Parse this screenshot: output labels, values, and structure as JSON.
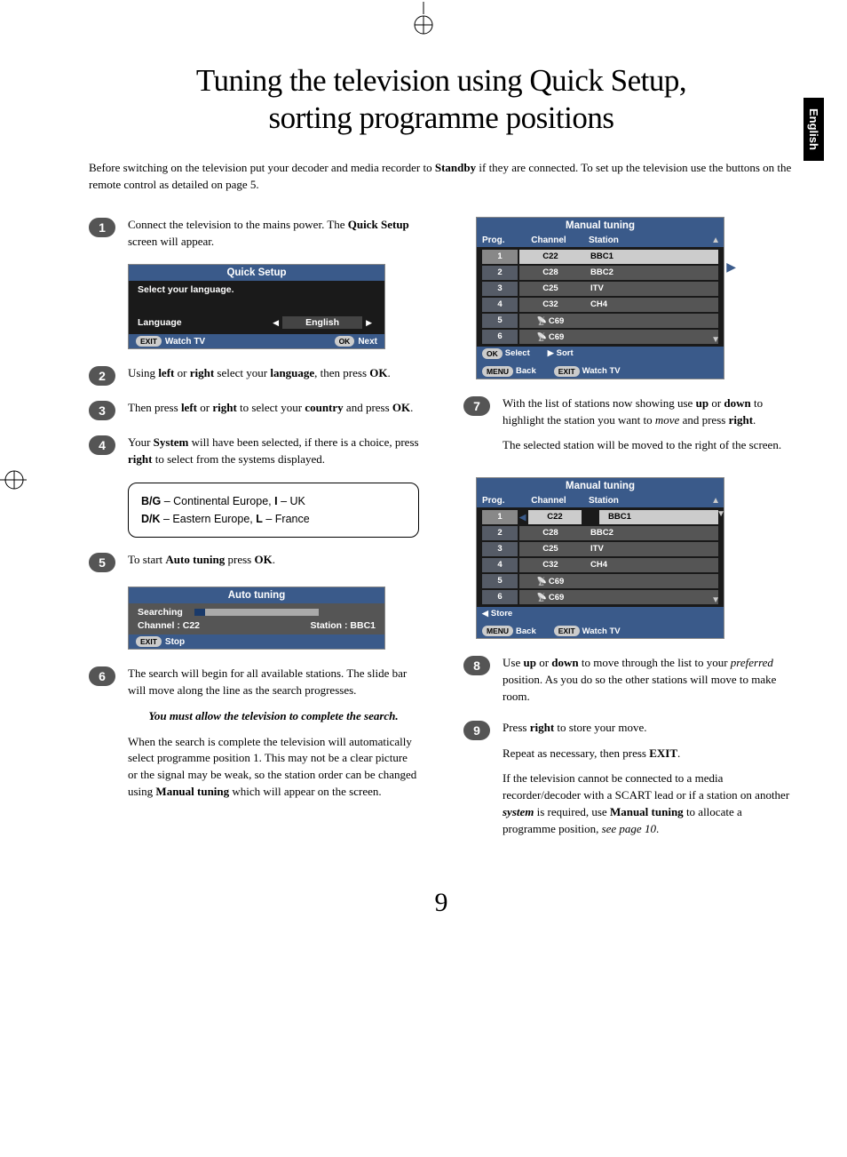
{
  "page_number": "9",
  "language_tab": "English",
  "title_line1": "Tuning the television using Quick Setup,",
  "title_line2": "sorting programme positions",
  "intro": "Before switching on the television put your decoder and media recorder to <b>Standby</b> if they are connected. To set up the television use the buttons on the remote control as detailed on page 5.",
  "steps_left": [
    {
      "n": "1",
      "text": "Connect the television to the mains power. The <b>Quick Setup</b> screen will appear."
    },
    {
      "n": "2",
      "text": "Using <b>left</b> or <b>right</b> select your <b>language</b>, then press <b>OK</b>."
    },
    {
      "n": "3",
      "text": "Then press <b>left</b> or <b>right</b> to select your <b>country</b> and press <b>OK</b>."
    },
    {
      "n": "4",
      "text": "Your <b>System</b> will have been selected, if there is a choice, press <b>right</b> to select from the systems displayed."
    },
    {
      "n": "5",
      "text": "To start <b>Auto tuning</b> press <b>OK</b>."
    },
    {
      "n": "6",
      "text": "The search will begin for all available stations. The slide bar will move along the line as the search progresses."
    }
  ],
  "system_note_line1": "<b>B/G</b> – Continental Europe, <b>I</b> – UK",
  "system_note_line2": "<b>D/K</b> – Eastern Europe, <b>L</b> – France",
  "search_note": "You must allow the television to complete the search.",
  "step6_extra": "When the search is complete the television will automatically select programme position 1. This may not be a clear picture or the signal may be weak, so the station order can be changed using <b>Manual tuning</b> which will appear on the screen.",
  "steps_right": [
    {
      "n": "7",
      "text": "With the list of stations now showing use <b>up</b> or <b>down</b> to highlight the station you want to <i>move</i> and press <b>right</b>."
    },
    {
      "n": "8",
      "text": "Use <b>up</b> or <b>down</b> to move through the list to your <i>preferred</i> position. As you do so the other stations will move to make room."
    },
    {
      "n": "9",
      "text": "Press <b>right</b> to store your move."
    }
  ],
  "step7_extra": "The selected station will be moved to the right of the screen.",
  "step9_extra1": "Repeat as necessary, then press <b>EXIT</b>.",
  "step9_extra2": "If the television cannot be connected to a media recorder/decoder with a SCART lead or if a station on another <b><i>system</i></b> is required, use <b>Manual tuning</b> to allocate a programme position, <i>see page 10</i>.",
  "quick_setup": {
    "title": "Quick Setup",
    "prompt": "Select your language.",
    "label": "Language",
    "value": "English",
    "footer_left_pill": "EXIT",
    "footer_left": "Watch TV",
    "footer_right_pill": "OK",
    "footer_right": "Next"
  },
  "auto_tuning": {
    "title": "Auto tuning",
    "searching": "Searching",
    "channel_label": "Channel  :  C22",
    "station_label": "Station : BBC1",
    "footer_pill": "EXIT",
    "footer": "Stop"
  },
  "manual_tuning": {
    "title": "Manual tuning",
    "headers": {
      "c1": "Prog.",
      "c2": "Channel",
      "c3": "Station"
    },
    "rows": [
      {
        "p": "1",
        "ch": "C22",
        "st": "BBC1"
      },
      {
        "p": "2",
        "ch": "C28",
        "st": "BBC2"
      },
      {
        "p": "3",
        "ch": "C25",
        "st": "ITV"
      },
      {
        "p": "4",
        "ch": "C32",
        "st": "CH4"
      },
      {
        "p": "5",
        "ch": "C69",
        "st": "",
        "ant": true
      },
      {
        "p": "6",
        "ch": "C69",
        "st": "",
        "ant": true
      }
    ],
    "footer1": {
      "ok": "OK",
      "select": "Select",
      "sort": "Sort",
      "menu": "MENU",
      "back": "Back",
      "exit": "EXIT",
      "watch": "Watch TV"
    },
    "footer2": {
      "store": "Store",
      "menu": "MENU",
      "back": "Back",
      "exit": "EXIT",
      "watch": "Watch TV"
    }
  }
}
